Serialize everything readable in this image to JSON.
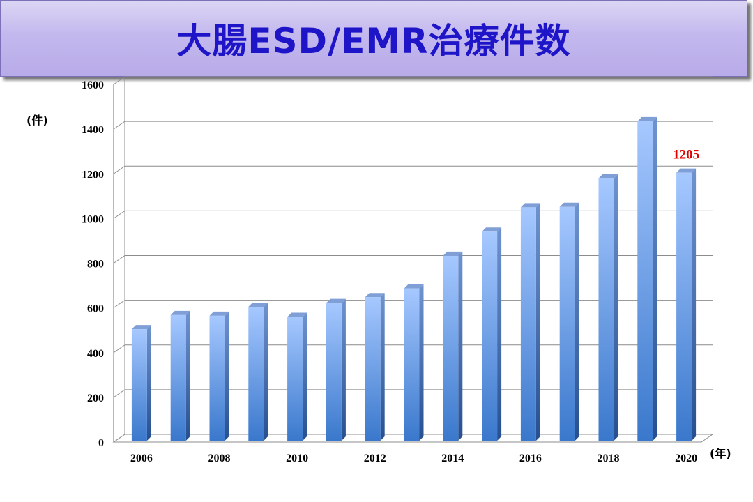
{
  "title": "大腸ESD/EMR治療件数",
  "chart_data": {
    "type": "bar",
    "title": "大腸ESD/EMR治療件数",
    "ylabel": "(件)",
    "xlabel": "(年)",
    "ylim": [
      0,
      1600
    ],
    "yticks": [
      0,
      200,
      400,
      600,
      800,
      1000,
      1200,
      1400,
      1600
    ],
    "categories": [
      "2006",
      "2007",
      "2008",
      "2009",
      "2010",
      "2011",
      "2012",
      "2013",
      "2014",
      "2015",
      "2016",
      "2017",
      "2018",
      "2019",
      "2020"
    ],
    "x_tick_labels": [
      "2006",
      "2008",
      "2010",
      "2012",
      "2014",
      "2016",
      "2018",
      "2020"
    ],
    "values": [
      505,
      568,
      565,
      605,
      560,
      622,
      648,
      687,
      833,
      941,
      1050,
      1052,
      1180,
      1435,
      1205
    ],
    "data_labels": [
      {
        "index": 14,
        "text": "1205",
        "color": "#e00000"
      }
    ],
    "grid": true,
    "legend": "none",
    "bar_color": "#4a86d8",
    "label_color": "#e00000"
  }
}
